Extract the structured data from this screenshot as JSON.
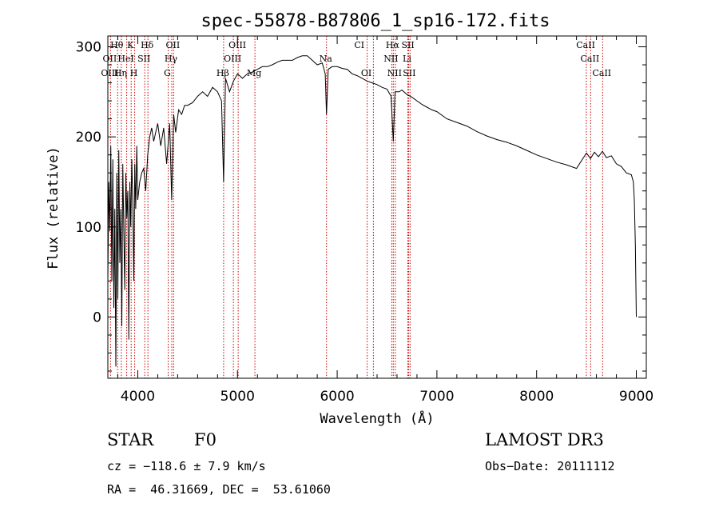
{
  "chart_data": {
    "type": "line",
    "title": "spec-55878-B87806_1_sp16-172.fits",
    "xlabel": "Wavelength (Å)",
    "ylabel": "Flux (relative)",
    "xlim": [
      3700,
      9100
    ],
    "ylim": [
      -68,
      312
    ],
    "xticks": [
      4000,
      5000,
      6000,
      7000,
      8000,
      9000
    ],
    "yticks": [
      0,
      100,
      200,
      300
    ],
    "series": [
      {
        "name": "spectrum",
        "x": [
          3700,
          3710,
          3720,
          3730,
          3740,
          3750,
          3760,
          3770,
          3780,
          3790,
          3800,
          3810,
          3820,
          3830,
          3840,
          3850,
          3860,
          3870,
          3880,
          3890,
          3900,
          3910,
          3920,
          3930,
          3940,
          3950,
          3960,
          3970,
          3980,
          3990,
          4000,
          4020,
          4040,
          4060,
          4080,
          4100,
          4120,
          4140,
          4160,
          4180,
          4200,
          4230,
          4260,
          4290,
          4320,
          4340,
          4360,
          4380,
          4410,
          4440,
          4470,
          4500,
          4550,
          4600,
          4650,
          4700,
          4750,
          4800,
          4840,
          4861,
          4880,
          4920,
          4960,
          5000,
          5050,
          5100,
          5150,
          5200,
          5250,
          5300,
          5350,
          5400,
          5450,
          5500,
          5550,
          5600,
          5650,
          5700,
          5750,
          5800,
          5850,
          5880,
          5893,
          5910,
          5950,
          6000,
          6050,
          6100,
          6150,
          6200,
          6250,
          6300,
          6350,
          6400,
          6450,
          6500,
          6540,
          6563,
          6580,
          6620,
          6650,
          6700,
          6750,
          6800,
          6850,
          6900,
          6950,
          7000,
          7100,
          7200,
          7300,
          7400,
          7500,
          7600,
          7700,
          7800,
          7900,
          8000,
          8100,
          8200,
          8300,
          8400,
          8500,
          8540,
          8580,
          8620,
          8660,
          8700,
          8750,
          8800,
          8850,
          8900,
          8950,
          8970,
          8980,
          8990,
          9000
        ],
        "values": [
          40,
          150,
          95,
          190,
          40,
          175,
          10,
          120,
          -55,
          160,
          20,
          185,
          60,
          120,
          -10,
          170,
          95,
          30,
          160,
          110,
          140,
          -25,
          150,
          100,
          175,
          125,
          40,
          170,
          120,
          190,
          130,
          150,
          160,
          165,
          140,
          180,
          200,
          210,
          195,
          205,
          215,
          190,
          210,
          170,
          215,
          130,
          225,
          205,
          230,
          225,
          235,
          235,
          238,
          245,
          250,
          245,
          255,
          250,
          240,
          150,
          265,
          250,
          262,
          270,
          265,
          270,
          272,
          275,
          278,
          278,
          280,
          283,
          285,
          285,
          285,
          288,
          290,
          290,
          285,
          280,
          282,
          270,
          225,
          275,
          278,
          278,
          276,
          275,
          270,
          268,
          265,
          262,
          260,
          258,
          255,
          253,
          245,
          195,
          250,
          250,
          252,
          247,
          244,
          240,
          236,
          233,
          230,
          228,
          220,
          216,
          212,
          206,
          201,
          197,
          194,
          190,
          185,
          180,
          176,
          172,
          169,
          165,
          182,
          176,
          183,
          178,
          184,
          177,
          179,
          170,
          167,
          160,
          158,
          150,
          130,
          80,
          0
        ]
      }
    ],
    "line_markers": [
      {
        "label": "Hθ",
        "row": 1,
        "wl": 3798
      },
      {
        "label": "K",
        "row": 1,
        "wl": 3934
      },
      {
        "label": "Hδ",
        "row": 1,
        "wl": 4102
      },
      {
        "label": "OII",
        "row": 1,
        "wl": 4360
      },
      {
        "label": "OIII",
        "row": 1,
        "wl": 5007
      },
      {
        "label": "CI",
        "row": 1,
        "wl": 6230
      },
      {
        "label": "Hα",
        "row": 1,
        "wl": 6563
      },
      {
        "label": "SII",
        "row": 1,
        "wl": 6717
      },
      {
        "label": "CaII",
        "row": 1,
        "wl": 8500
      },
      {
        "label": "OII",
        "row": 2,
        "wl": 3727
      },
      {
        "label": "HeI",
        "row": 2,
        "wl": 3889
      },
      {
        "label": "SII",
        "row": 2,
        "wl": 4070
      },
      {
        "label": "Hγ",
        "row": 2,
        "wl": 4341
      },
      {
        "label": "OIII",
        "row": 2,
        "wl": 4959
      },
      {
        "label": "Na",
        "row": 2,
        "wl": 5893
      },
      {
        "label": "NII",
        "row": 2,
        "wl": 6548
      },
      {
        "label": "Li",
        "row": 2,
        "wl": 6708
      },
      {
        "label": "CaII",
        "row": 2,
        "wl": 8542
      },
      {
        "label": "OIII",
        "row": 3,
        "wl": 3727
      },
      {
        "label": "Hη",
        "row": 3,
        "wl": 3835
      },
      {
        "label": "H",
        "row": 3,
        "wl": 3969
      },
      {
        "label": "G",
        "row": 3,
        "wl": 4305
      },
      {
        "label": "Hβ",
        "row": 3,
        "wl": 4861
      },
      {
        "label": "Mg",
        "row": 3,
        "wl": 5175
      },
      {
        "label": "OI",
        "row": 3,
        "wl": 6300
      },
      {
        "label": "NII",
        "row": 3,
        "wl": 6583
      },
      {
        "label": "SII",
        "row": 3,
        "wl": 6731
      },
      {
        "label": "CaII",
        "row": 3,
        "wl": 8662
      }
    ],
    "marker_lines_wl": [
      3727,
      3798,
      3835,
      3889,
      3934,
      3969,
      4070,
      4102,
      4305,
      4341,
      4360,
      4861,
      4959,
      5007,
      5175,
      5893,
      6300,
      6363,
      6548,
      6563,
      6583,
      6708,
      6717,
      6731,
      8498,
      8542,
      8662
    ]
  },
  "info": {
    "object_class": "STAR",
    "subclass": "F0",
    "survey": "LAMOST DR3",
    "cz": "cz = −118.6 ± 7.9 km/s",
    "obs_date": "Obs−Date: 20111112",
    "coords": "RA =  46.31669, DEC =  53.61060"
  },
  "colors": {
    "spectrum": "#000000",
    "marker": "#cc0000",
    "axis": "#000000"
  }
}
